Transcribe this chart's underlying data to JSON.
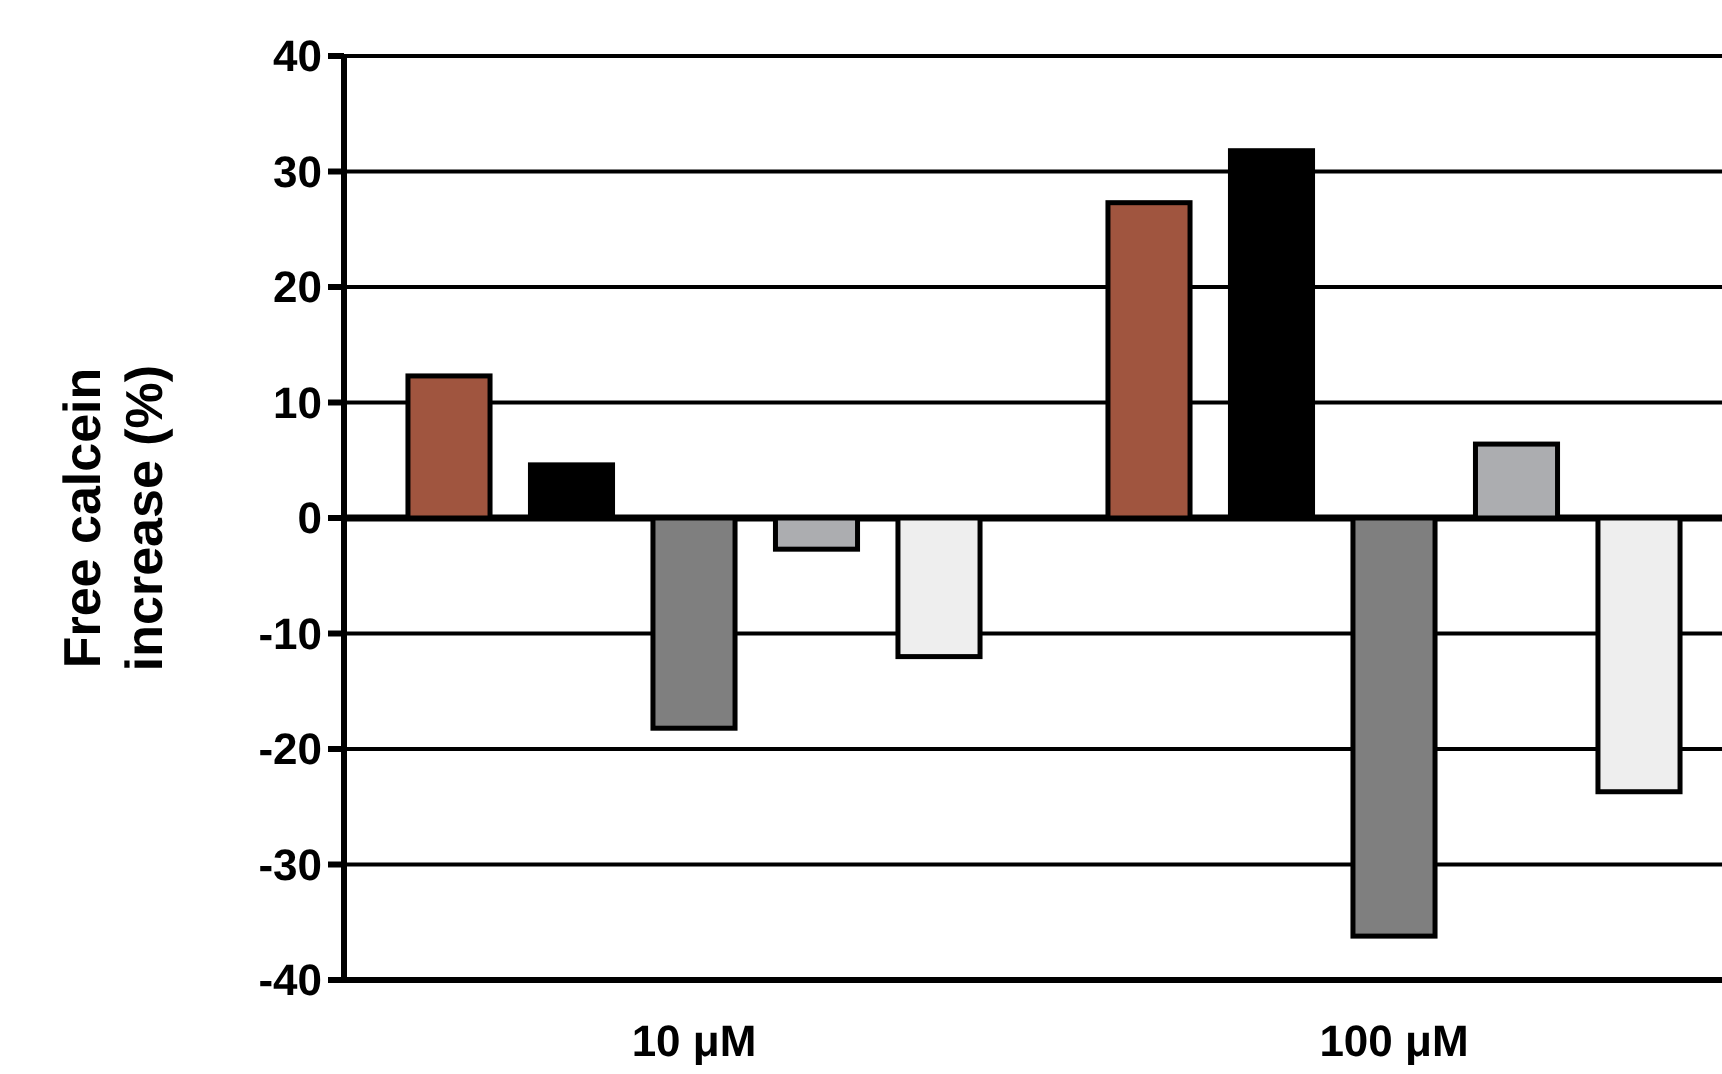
{
  "chart_data": {
    "type": "bar",
    "ylabel": "Free calcein\nincrease (%)",
    "categories": [
      "10 μM",
      "100 μM"
    ],
    "series": [
      {
        "color": "#a0553f",
        "values": [
          12.3,
          27.3
        ]
      },
      {
        "color": "#000000",
        "values": [
          4.6,
          31.8
        ]
      },
      {
        "color": "#7f7f7f",
        "values": [
          -18.2,
          -36.2
        ]
      },
      {
        "color": "#acadb0",
        "values": [
          -2.7,
          6.4
        ]
      },
      {
        "color": "#eeeeee",
        "values": [
          -12.0,
          -23.7
        ]
      }
    ],
    "ylim": [
      -40,
      40
    ],
    "yticks": [
      -40,
      -30,
      -20,
      -10,
      0,
      10,
      20,
      30,
      40
    ],
    "grid": "y"
  }
}
